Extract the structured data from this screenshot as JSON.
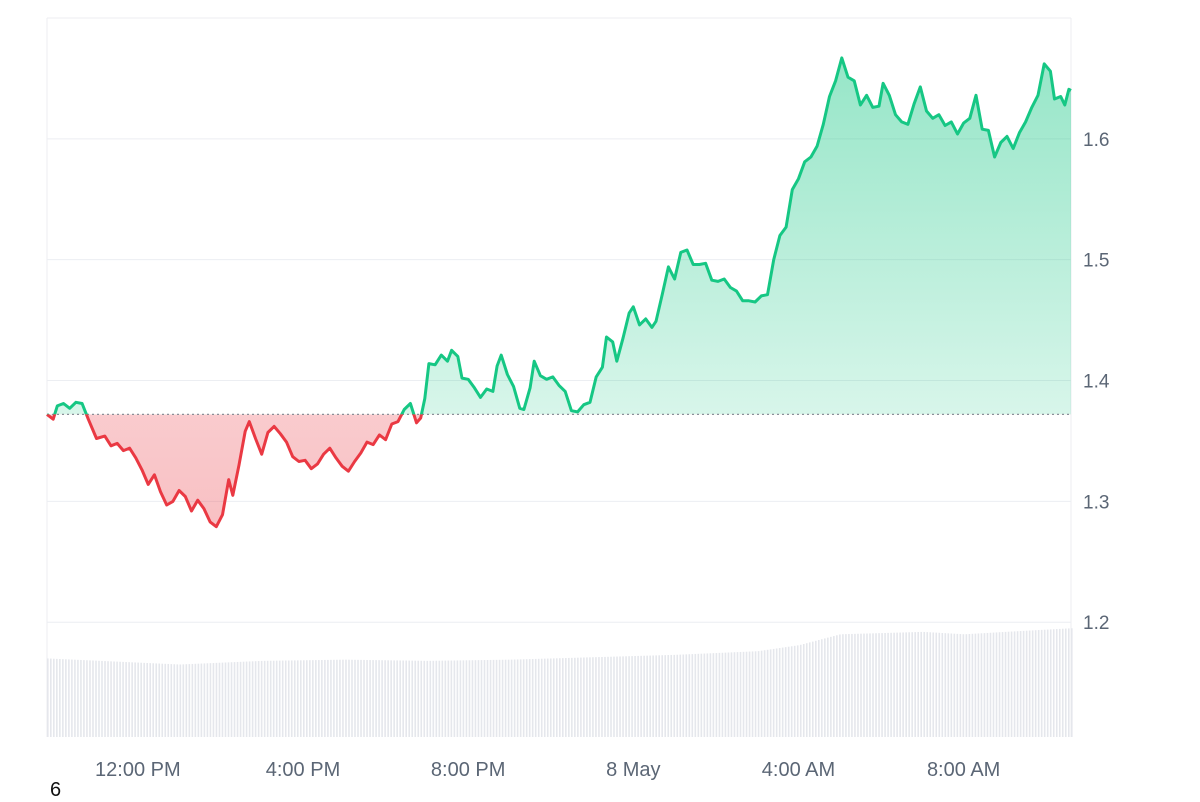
{
  "colors": {
    "up": "#16c784",
    "down": "#ea3943",
    "grid": "#eceef2",
    "volume": "#e5e7ec",
    "baseline": "#8a8f98"
  },
  "corner_label": "6",
  "chart_data": {
    "type": "area",
    "title": "",
    "xlabel": "",
    "ylabel": "",
    "ylim": [
      1.105,
      1.7
    ],
    "yticks": [
      1.2,
      1.3,
      1.4,
      1.5,
      1.6
    ],
    "ytick_labels": [
      "1.2",
      "1.3",
      "1.4",
      "1.5",
      "1.6"
    ],
    "xlim": [
      -1.2,
      23.6
    ],
    "xticks": [
      {
        "x": 1,
        "label": "12:00 PM"
      },
      {
        "x": 5,
        "label": "4:00 PM"
      },
      {
        "x": 9,
        "label": "8:00 PM"
      },
      {
        "x": 13,
        "label": "8 May"
      },
      {
        "x": 17,
        "label": "4:00 AM"
      },
      {
        "x": 21,
        "label": "8:00 AM"
      }
    ],
    "baseline": 1.372,
    "price": [
      [
        -1.2,
        1.372
      ],
      [
        -1.05,
        1.368
      ],
      [
        -0.95,
        1.379
      ],
      [
        -0.8,
        1.381
      ],
      [
        -0.65,
        1.377
      ],
      [
        -0.5,
        1.382
      ],
      [
        -0.35,
        1.381
      ],
      [
        -0.2,
        1.368
      ],
      [
        0.0,
        1.352
      ],
      [
        0.2,
        1.354
      ],
      [
        0.35,
        1.346
      ],
      [
        0.5,
        1.348
      ],
      [
        0.65,
        1.342
      ],
      [
        0.8,
        1.344
      ],
      [
        0.95,
        1.336
      ],
      [
        1.1,
        1.326
      ],
      [
        1.25,
        1.314
      ],
      [
        1.4,
        1.322
      ],
      [
        1.55,
        1.308
      ],
      [
        1.7,
        1.297
      ],
      [
        1.85,
        1.3
      ],
      [
        2.0,
        1.309
      ],
      [
        2.15,
        1.304
      ],
      [
        2.3,
        1.292
      ],
      [
        2.45,
        1.301
      ],
      [
        2.6,
        1.294
      ],
      [
        2.75,
        1.283
      ],
      [
        2.9,
        1.279
      ],
      [
        3.05,
        1.289
      ],
      [
        3.2,
        1.318
      ],
      [
        3.3,
        1.305
      ],
      [
        3.45,
        1.33
      ],
      [
        3.6,
        1.358
      ],
      [
        3.7,
        1.366
      ],
      [
        3.85,
        1.352
      ],
      [
        4.0,
        1.339
      ],
      [
        4.15,
        1.357
      ],
      [
        4.3,
        1.362
      ],
      [
        4.45,
        1.356
      ],
      [
        4.6,
        1.349
      ],
      [
        4.75,
        1.337
      ],
      [
        4.9,
        1.333
      ],
      [
        5.05,
        1.334
      ],
      [
        5.2,
        1.327
      ],
      [
        5.35,
        1.331
      ],
      [
        5.5,
        1.339
      ],
      [
        5.65,
        1.344
      ],
      [
        5.8,
        1.336
      ],
      [
        5.95,
        1.329
      ],
      [
        6.1,
        1.325
      ],
      [
        6.25,
        1.333
      ],
      [
        6.4,
        1.34
      ],
      [
        6.55,
        1.349
      ],
      [
        6.7,
        1.347
      ],
      [
        6.85,
        1.355
      ],
      [
        7.0,
        1.351
      ],
      [
        7.15,
        1.364
      ],
      [
        7.3,
        1.366
      ],
      [
        7.45,
        1.376
      ],
      [
        7.6,
        1.381
      ],
      [
        7.75,
        1.365
      ],
      [
        7.85,
        1.369
      ],
      [
        7.95,
        1.385
      ],
      [
        8.05,
        1.414
      ],
      [
        8.2,
        1.413
      ],
      [
        8.35,
        1.421
      ],
      [
        8.5,
        1.416
      ],
      [
        8.6,
        1.425
      ],
      [
        8.75,
        1.42
      ],
      [
        8.85,
        1.402
      ],
      [
        9.0,
        1.401
      ],
      [
        9.15,
        1.394
      ],
      [
        9.3,
        1.386
      ],
      [
        9.45,
        1.393
      ],
      [
        9.6,
        1.391
      ],
      [
        9.7,
        1.412
      ],
      [
        9.8,
        1.421
      ],
      [
        9.95,
        1.405
      ],
      [
        10.1,
        1.395
      ],
      [
        10.25,
        1.377
      ],
      [
        10.35,
        1.376
      ],
      [
        10.5,
        1.394
      ],
      [
        10.6,
        1.416
      ],
      [
        10.75,
        1.404
      ],
      [
        10.9,
        1.401
      ],
      [
        11.05,
        1.403
      ],
      [
        11.2,
        1.396
      ],
      [
        11.35,
        1.391
      ],
      [
        11.5,
        1.375
      ],
      [
        11.65,
        1.374
      ],
      [
        11.8,
        1.38
      ],
      [
        11.95,
        1.382
      ],
      [
        12.1,
        1.403
      ],
      [
        12.25,
        1.411
      ],
      [
        12.35,
        1.436
      ],
      [
        12.5,
        1.432
      ],
      [
        12.6,
        1.416
      ],
      [
        12.75,
        1.435
      ],
      [
        12.9,
        1.456
      ],
      [
        13.0,
        1.461
      ],
      [
        13.15,
        1.446
      ],
      [
        13.3,
        1.451
      ],
      [
        13.45,
        1.444
      ],
      [
        13.55,
        1.449
      ],
      [
        13.7,
        1.471
      ],
      [
        13.85,
        1.494
      ],
      [
        14.0,
        1.484
      ],
      [
        14.15,
        1.506
      ],
      [
        14.3,
        1.508
      ],
      [
        14.45,
        1.496
      ],
      [
        14.6,
        1.496
      ],
      [
        14.75,
        1.497
      ],
      [
        14.9,
        1.483
      ],
      [
        15.05,
        1.482
      ],
      [
        15.2,
        1.484
      ],
      [
        15.35,
        1.477
      ],
      [
        15.5,
        1.474
      ],
      [
        15.65,
        1.466
      ],
      [
        15.8,
        1.466
      ],
      [
        15.95,
        1.465
      ],
      [
        16.1,
        1.47
      ],
      [
        16.25,
        1.471
      ],
      [
        16.4,
        1.5
      ],
      [
        16.55,
        1.52
      ],
      [
        16.7,
        1.527
      ],
      [
        16.85,
        1.558
      ],
      [
        17.0,
        1.567
      ],
      [
        17.15,
        1.581
      ],
      [
        17.3,
        1.585
      ],
      [
        17.45,
        1.594
      ],
      [
        17.6,
        1.612
      ],
      [
        17.75,
        1.635
      ],
      [
        17.9,
        1.648
      ],
      [
        18.05,
        1.667
      ],
      [
        18.2,
        1.651
      ],
      [
        18.35,
        1.648
      ],
      [
        18.5,
        1.628
      ],
      [
        18.65,
        1.636
      ],
      [
        18.8,
        1.626
      ],
      [
        18.95,
        1.627
      ],
      [
        19.05,
        1.646
      ],
      [
        19.2,
        1.636
      ],
      [
        19.35,
        1.62
      ],
      [
        19.5,
        1.614
      ],
      [
        19.65,
        1.612
      ],
      [
        19.8,
        1.629
      ],
      [
        19.95,
        1.643
      ],
      [
        20.1,
        1.623
      ],
      [
        20.25,
        1.617
      ],
      [
        20.4,
        1.62
      ],
      [
        20.55,
        1.611
      ],
      [
        20.7,
        1.614
      ],
      [
        20.85,
        1.604
      ],
      [
        21.0,
        1.613
      ],
      [
        21.15,
        1.617
      ],
      [
        21.3,
        1.636
      ],
      [
        21.45,
        1.608
      ],
      [
        21.6,
        1.607
      ],
      [
        21.75,
        1.585
      ],
      [
        21.9,
        1.597
      ],
      [
        22.05,
        1.602
      ],
      [
        22.2,
        1.592
      ],
      [
        22.35,
        1.605
      ],
      [
        22.5,
        1.614
      ],
      [
        22.65,
        1.626
      ],
      [
        22.8,
        1.636
      ],
      [
        22.95,
        1.662
      ],
      [
        23.1,
        1.656
      ],
      [
        23.2,
        1.633
      ],
      [
        23.35,
        1.635
      ],
      [
        23.45,
        1.628
      ],
      [
        23.55,
        1.641
      ],
      [
        23.6,
        1.64
      ]
    ],
    "volume": {
      "ylim": [
        1.105,
        1.7
      ],
      "points": [
        [
          -1.2,
          1.17
        ],
        [
          2.0,
          1.165
        ],
        [
          4.0,
          1.168
        ],
        [
          6.0,
          1.169
        ],
        [
          8.0,
          1.168
        ],
        [
          10.0,
          1.169
        ],
        [
          12.0,
          1.171
        ],
        [
          14.0,
          1.173
        ],
        [
          16.0,
          1.176
        ],
        [
          17.0,
          1.181
        ],
        [
          18.0,
          1.19
        ],
        [
          20.0,
          1.192
        ],
        [
          21.0,
          1.19
        ],
        [
          22.0,
          1.192
        ],
        [
          23.6,
          1.195
        ]
      ]
    }
  }
}
